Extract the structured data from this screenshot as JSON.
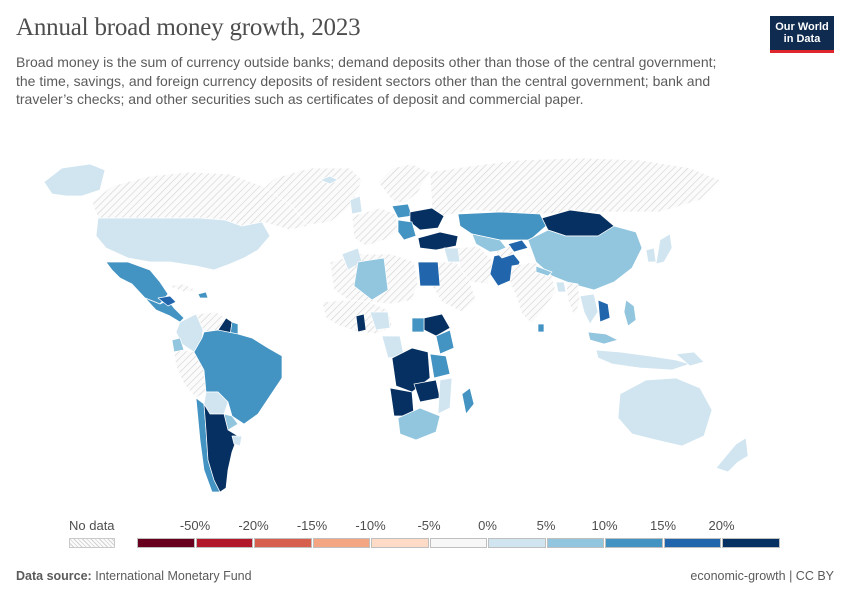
{
  "header": {
    "title": "Annual broad money growth, 2023",
    "subtitle": "Broad money is the sum of currency outside banks; demand deposits other than those of the central government; the time, savings, and foreign currency deposits of resident sectors other than the central government; bank and traveler’s checks; and other securities such as certificates of deposit and commercial paper.",
    "logo_line1": "Our World",
    "logo_line2": "in Data"
  },
  "legend": {
    "nodata_label": "No data",
    "bins": [
      {
        "label": "-50%",
        "color": "#67001f"
      },
      {
        "label": "-20%",
        "color": "#b2182b"
      },
      {
        "label": "-15%",
        "color": "#d6604d"
      },
      {
        "label": "-10%",
        "color": "#f4a582"
      },
      {
        "label": "-5%",
        "color": "#fddbc7"
      },
      {
        "label": "0%",
        "color": "#f7f7f7"
      },
      {
        "label": "5%",
        "color": "#d1e5f0"
      },
      {
        "label": "10%",
        "color": "#92c5de"
      },
      {
        "label": "15%",
        "color": "#4393c3"
      },
      {
        "label": "20%",
        "color": "#2166ac"
      },
      {
        "label": "",
        "color": "#053061"
      }
    ]
  },
  "footer": {
    "source_label": "Data source:",
    "source_value": "International Monetary Fund",
    "slug": "economic-growth | CC BY"
  },
  "colors": {
    "nodata": "#f2f2f2",
    "border": "#ffffff",
    "c0": "#f7f7f7",
    "c5": "#d1e5f0",
    "c10": "#92c5de",
    "c15": "#4393c3",
    "c20": "#2166ac",
    "c20p": "#053061"
  }
}
